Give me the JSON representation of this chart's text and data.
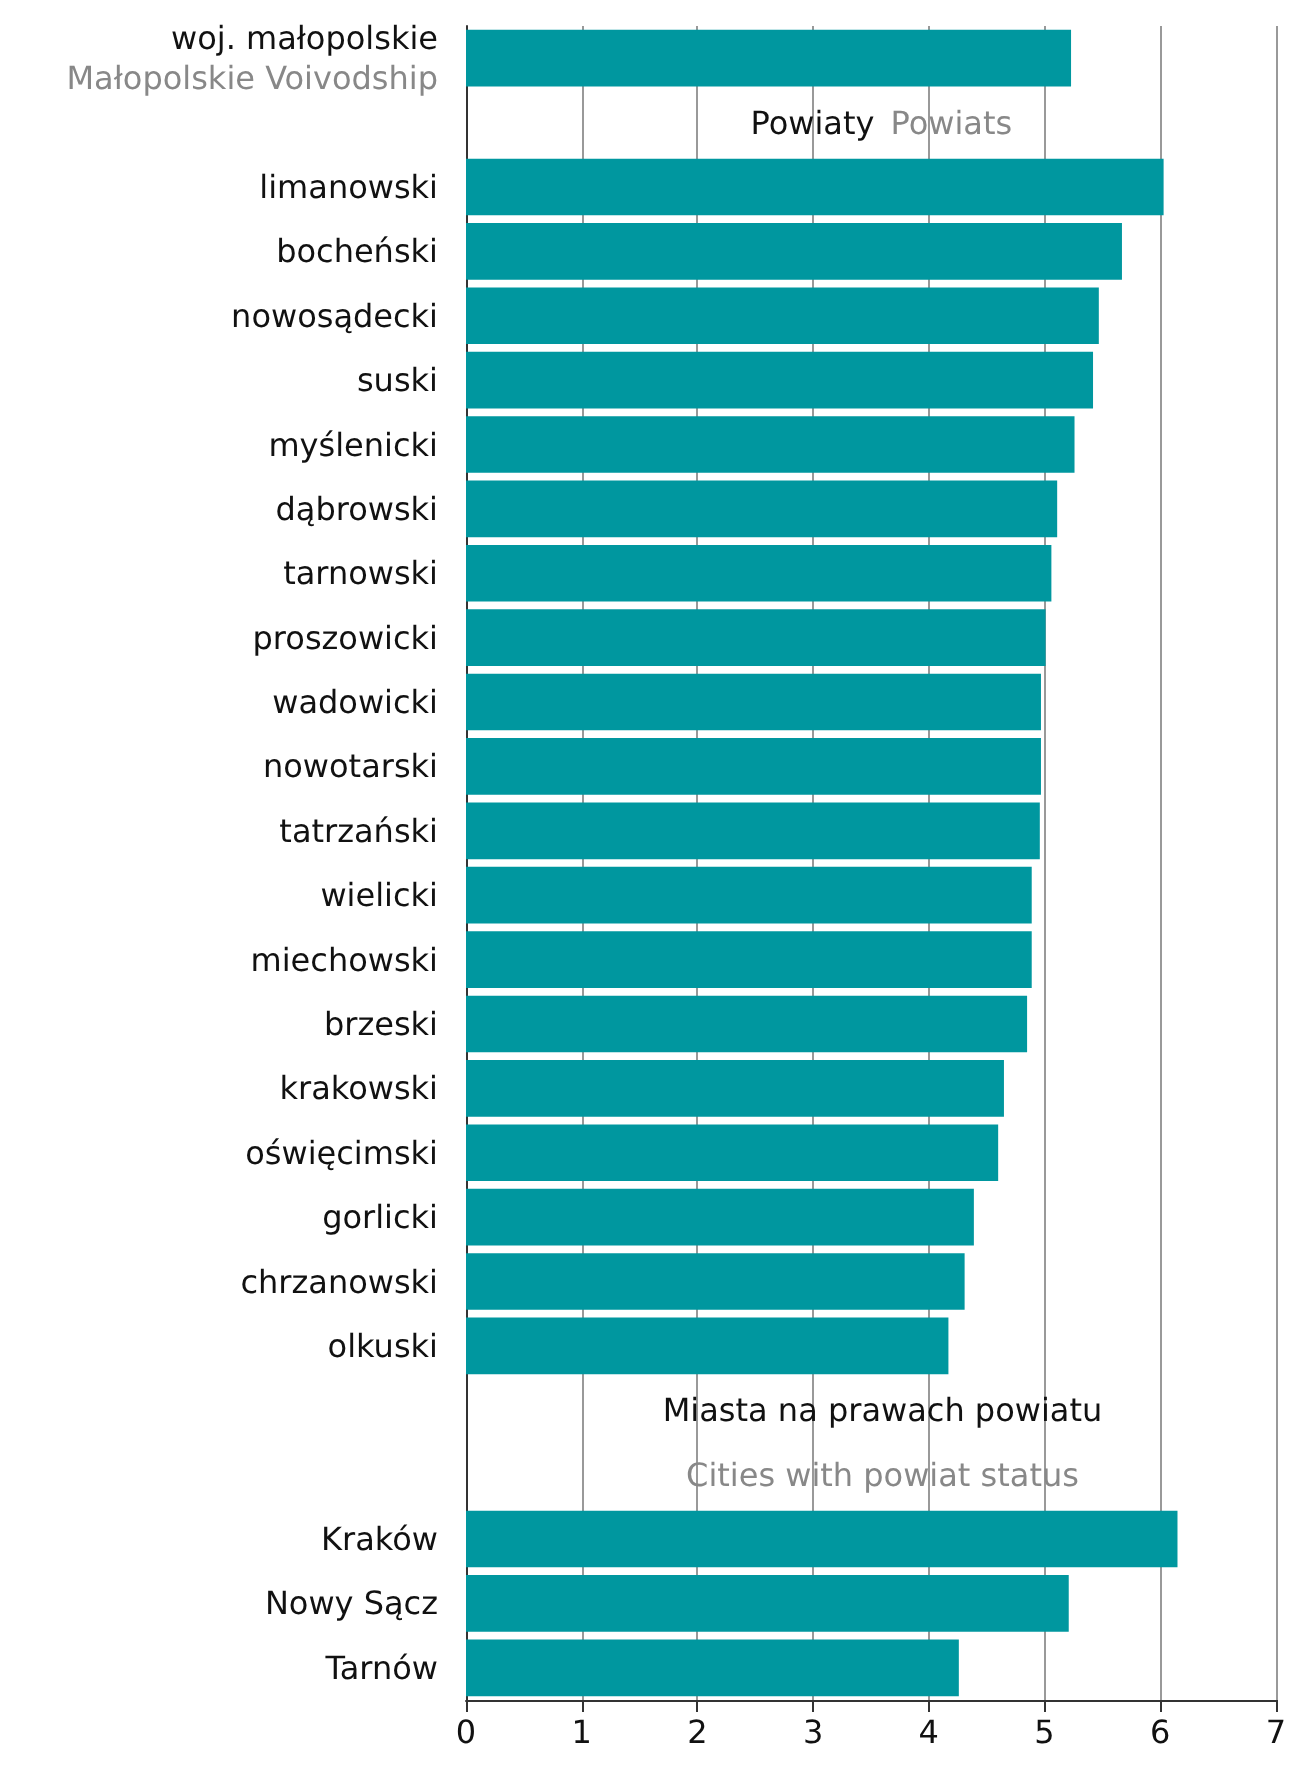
{
  "chart_data": {
    "type": "bar",
    "orientation": "horizontal",
    "categories": [
      "woj. małopolskie\nMałopolskie Voivodship",
      null,
      "limanowski",
      "bocheński",
      "nowosądecki",
      "suski",
      "myślenicki",
      "dąbrowski",
      "tarnowski",
      "proszowicki",
      "wadowicki",
      "nowotarski",
      "tatrzański",
      "wielicki",
      "miechowski",
      "brzeski",
      "krakowski",
      "oświęcimski",
      "gorlicki",
      "chrzanowski",
      "olkuski",
      null,
      null,
      "Kraków",
      "Nowy Sącz",
      "Tarnów"
    ],
    "values": [
      5.23,
      null,
      6.03,
      5.67,
      5.47,
      5.42,
      5.26,
      5.11,
      5.06,
      5.01,
      4.97,
      4.97,
      4.96,
      4.89,
      4.89,
      4.85,
      4.65,
      4.6,
      4.39,
      4.31,
      4.17,
      null,
      null,
      6.15,
      5.21,
      4.26
    ],
    "color": "#00979f",
    "xlim": [
      0,
      7
    ],
    "xticks": [
      0,
      1,
      2,
      3,
      4,
      5,
      6,
      7
    ],
    "grid": "x",
    "annotations": [
      "Powiaty",
      "Powiats",
      "Miasta na prawach powiatu",
      "Cities with powiat status"
    ]
  }
}
